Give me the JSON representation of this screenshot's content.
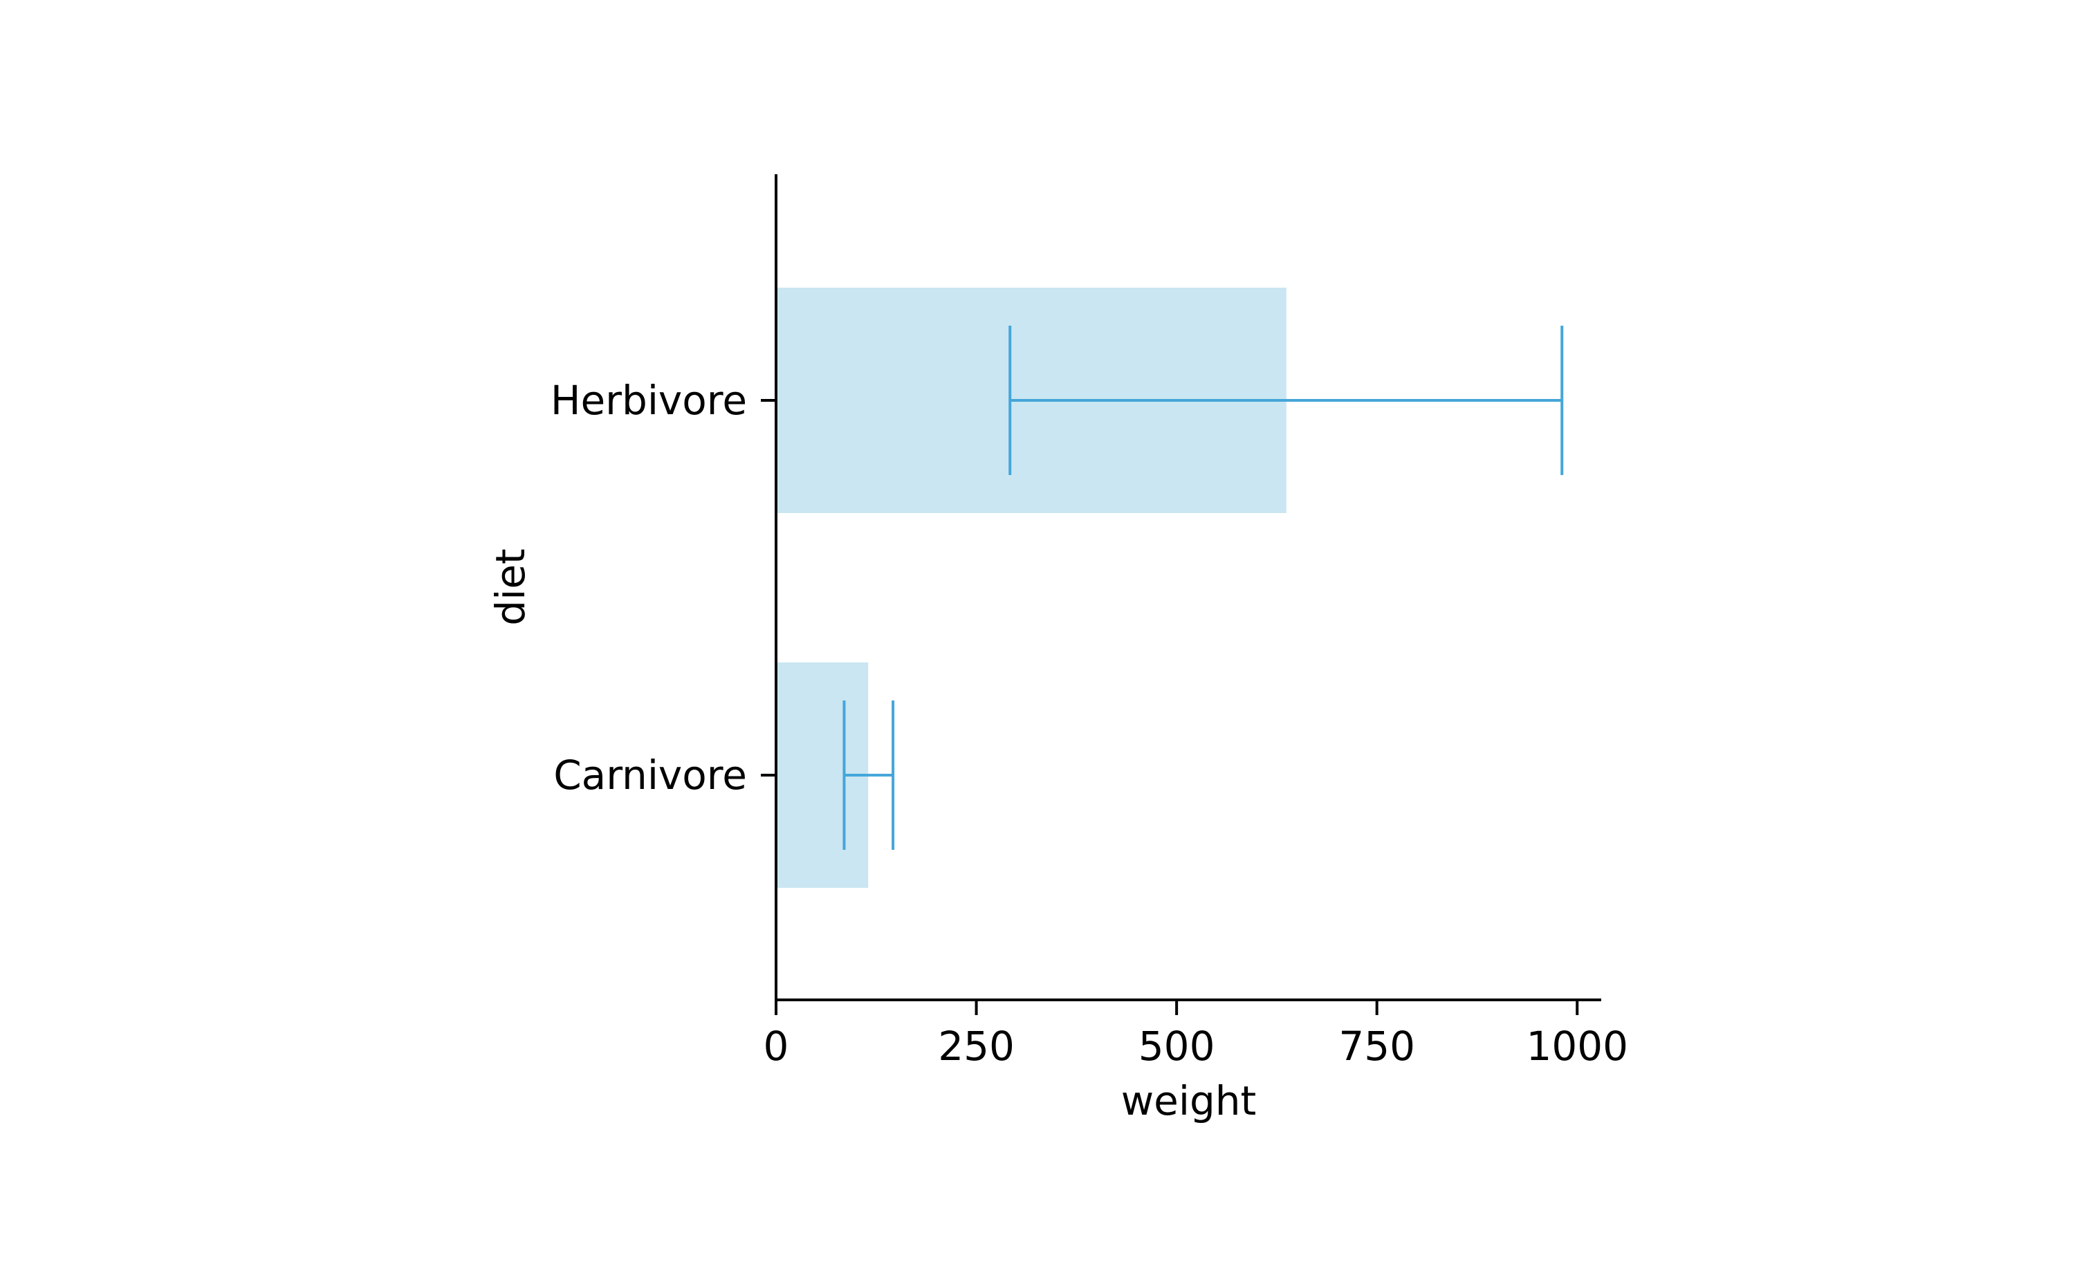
{
  "chart_data": {
    "type": "bar",
    "orientation": "horizontal",
    "title": "",
    "xlabel": "weight",
    "ylabel": "diet",
    "categories": [
      "Herbivore",
      "Carnivore"
    ],
    "values": [
      637,
      115
    ],
    "error_low": [
      292,
      85
    ],
    "error_high": [
      981,
      146
    ],
    "xlim": [
      0,
      1030
    ],
    "xticks": [
      0,
      250,
      500,
      750,
      1000
    ],
    "xtick_labels": [
      "0",
      "250",
      "500",
      "750",
      "1000"
    ],
    "grid": false,
    "legend": "none",
    "colors": {
      "bar_fill": "#cae6f2",
      "errorbar": "#45a6d9",
      "axis": "#000000"
    }
  }
}
